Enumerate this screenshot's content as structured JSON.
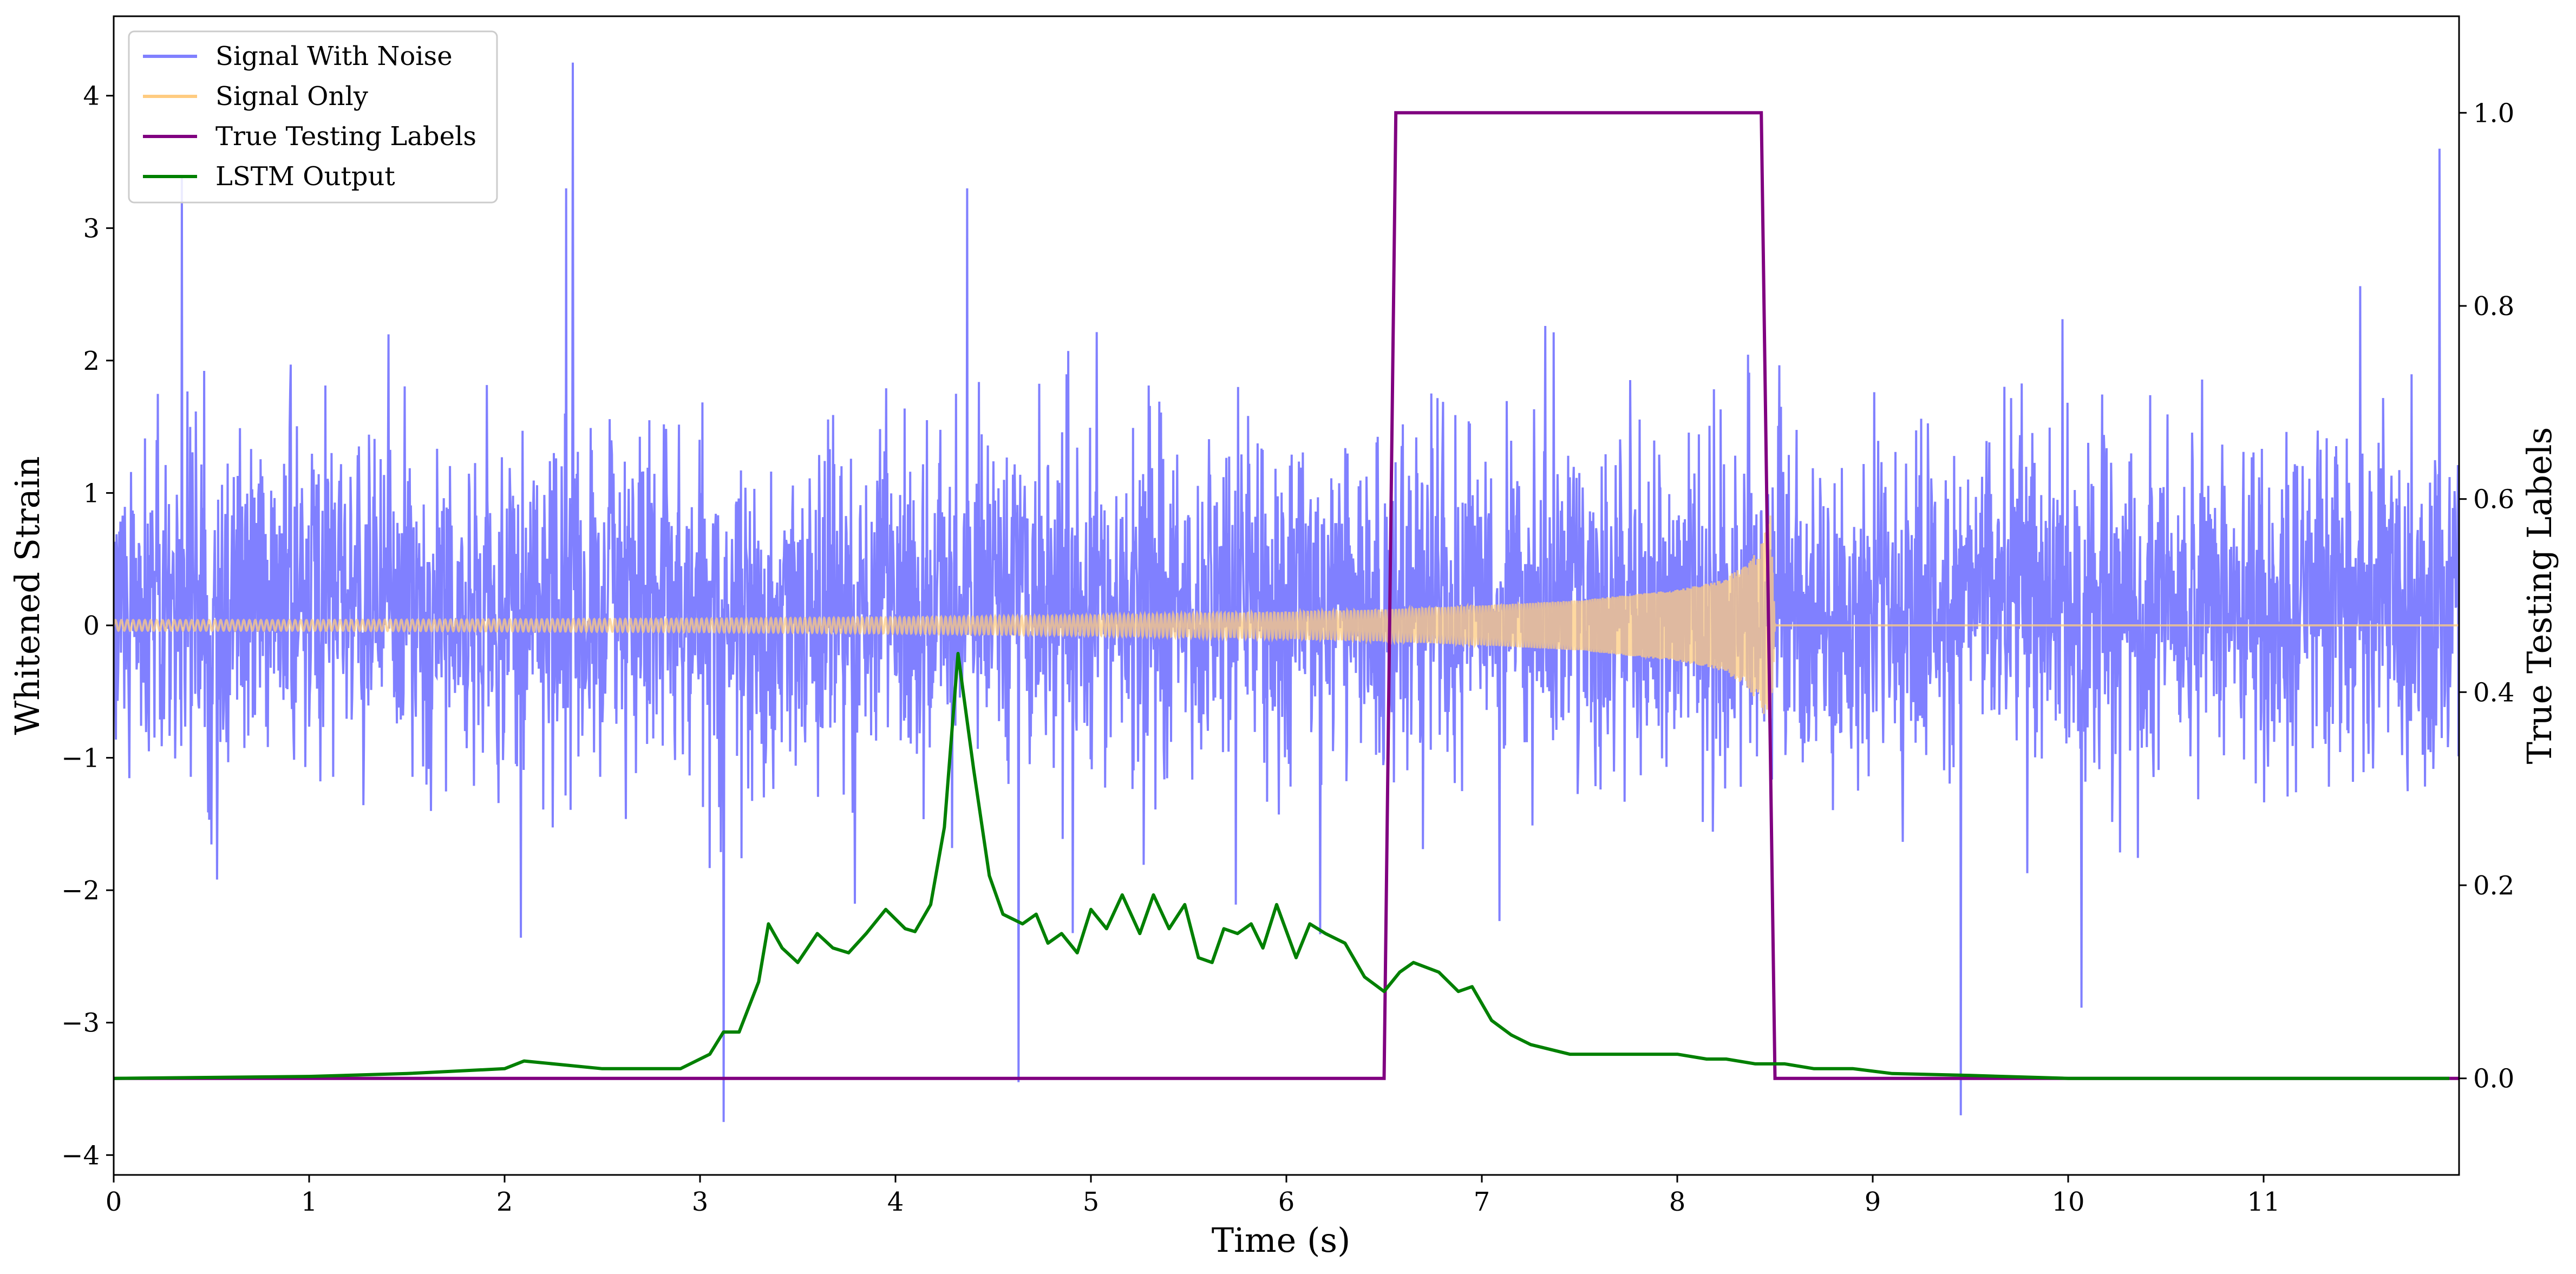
{
  "chart_data": {
    "type": "line",
    "title": "",
    "xlabel": "Time (s)",
    "ylabel": "Whitened Strain",
    "y2label": "True Testing Labels",
    "xlim": [
      0,
      12
    ],
    "ylim": [
      -4.15,
      4.6
    ],
    "y2lim": [
      -0.1,
      1.1
    ],
    "xticks": [
      "0",
      "1",
      "2",
      "3",
      "4",
      "5",
      "6",
      "7",
      "8",
      "9",
      "10",
      "11"
    ],
    "yticks": [
      "−4",
      "−3",
      "−2",
      "−1",
      "0",
      "1",
      "2",
      "3",
      "4"
    ],
    "y2ticks": [
      "0.0",
      "0.2",
      "0.4",
      "0.6",
      "0.8",
      "1.0"
    ],
    "legend": {
      "position": "upper-left",
      "entries": [
        "Signal With Noise",
        "Signal Only",
        "True Testing Labels",
        "LSTM Output"
      ]
    },
    "series": [
      {
        "name": "Signal With Noise",
        "axis": "left",
        "color": "#8080ff",
        "description_values": {
          "amplitude_typical": [
            -1.5,
            2.2
          ],
          "notable_peaks": [
            {
              "x": 0.35,
              "y": 3.4
            },
            {
              "x": 2.35,
              "y": 4.25
            },
            {
              "x": 3.12,
              "y": -3.75
            },
            {
              "x": 4.63,
              "y": -3.45
            },
            {
              "x": 9.45,
              "y": -3.7
            },
            {
              "x": 11.9,
              "y": 3.6
            }
          ]
        }
      },
      {
        "name": "Signal Only",
        "axis": "left",
        "color": "#ffcc80",
        "envelope": {
          "x": [
            0,
            1,
            2,
            3,
            4,
            5,
            6,
            6.5,
            7,
            7.5,
            8,
            8.2,
            8.35,
            8.43,
            8.48,
            8.5,
            12
          ],
          "amplitude": [
            0.04,
            0.04,
            0.045,
            0.05,
            0.06,
            0.075,
            0.1,
            0.12,
            0.15,
            0.19,
            0.27,
            0.33,
            0.45,
            0.62,
            0.85,
            0,
            0
          ]
        }
      },
      {
        "name": "True Testing Labels",
        "axis": "right",
        "color": "#800080",
        "x": [
          0,
          6.5,
          6.56,
          8.43,
          8.5,
          12
        ],
        "y": [
          0,
          0,
          1,
          1,
          0,
          0
        ]
      },
      {
        "name": "LSTM Output",
        "axis": "right",
        "color": "#008000",
        "x": [
          0,
          1,
          1.5,
          2,
          2.1,
          2.5,
          2.9,
          3.05,
          3.12,
          3.2,
          3.3,
          3.35,
          3.42,
          3.5,
          3.6,
          3.68,
          3.76,
          3.85,
          3.95,
          4.05,
          4.1,
          4.18,
          4.25,
          4.32,
          4.4,
          4.48,
          4.55,
          4.65,
          4.72,
          4.78,
          4.85,
          4.93,
          5.0,
          5.08,
          5.16,
          5.25,
          5.32,
          5.4,
          5.48,
          5.55,
          5.62,
          5.68,
          5.75,
          5.82,
          5.88,
          5.95,
          6.05,
          6.12,
          6.2,
          6.3,
          6.4,
          6.5,
          6.58,
          6.65,
          6.78,
          6.88,
          6.95,
          7.05,
          7.15,
          7.25,
          7.35,
          7.45,
          7.6,
          7.8,
          8.0,
          8.15,
          8.25,
          8.4,
          8.55,
          8.7,
          8.9,
          9.1,
          9.5,
          10.0,
          10.5,
          11.0,
          11.5,
          11.95
        ],
        "y": [
          0,
          0.002,
          0.005,
          0.01,
          0.018,
          0.01,
          0.01,
          0.025,
          0.048,
          0.048,
          0.1,
          0.16,
          0.135,
          0.12,
          0.15,
          0.135,
          0.13,
          0.15,
          0.175,
          0.155,
          0.152,
          0.18,
          0.26,
          0.44,
          0.32,
          0.21,
          0.17,
          0.16,
          0.17,
          0.14,
          0.15,
          0.13,
          0.175,
          0.155,
          0.19,
          0.15,
          0.19,
          0.155,
          0.18,
          0.125,
          0.12,
          0.155,
          0.15,
          0.16,
          0.135,
          0.18,
          0.125,
          0.16,
          0.15,
          0.14,
          0.105,
          0.09,
          0.11,
          0.12,
          0.11,
          0.09,
          0.095,
          0.06,
          0.045,
          0.035,
          0.03,
          0.025,
          0.025,
          0.025,
          0.025,
          0.02,
          0.02,
          0.015,
          0.015,
          0.01,
          0.01,
          0.005,
          0.003,
          0,
          0,
          0,
          0,
          0
        ]
      }
    ]
  }
}
